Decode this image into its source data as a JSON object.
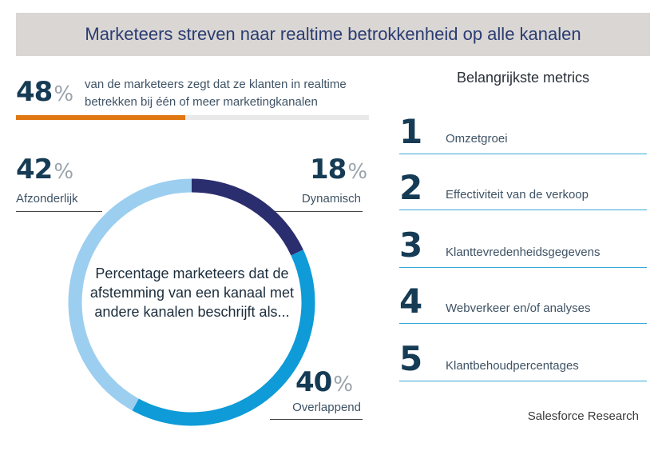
{
  "banner": {
    "title": "Marketeers streven naar realtime betrokkenheid op alle kanalen"
  },
  "headline": {
    "value": "48",
    "pct": "%",
    "text": "van de marketeers zegt dat ze klanten in realtime betrekken bij één of meer marketingkanalen",
    "bar_fraction": 0.48,
    "bar_color": "#e07712"
  },
  "chart_data": {
    "type": "pie",
    "subtype": "donut",
    "center_label": "Percentage marketeers dat de afstemming van een kanaal met andere kanalen beschrijft als...",
    "categories": [
      "Dynamisch",
      "Overlappend",
      "Afzonderlijk"
    ],
    "values": [
      18,
      40,
      42
    ],
    "value_labels": [
      "18",
      "40",
      "42"
    ],
    "pct_symbol": "%",
    "colors": [
      "#2a2d6e",
      "#0e9bd7",
      "#9ccef0"
    ]
  },
  "metrics": {
    "title": "Belangrijkste metrics",
    "items": [
      {
        "num": "1",
        "label": "Omzetgroei"
      },
      {
        "num": "2",
        "label": "Effectiviteit van de verkoop"
      },
      {
        "num": "3",
        "label": "Klanttevredenheidsgegevens"
      },
      {
        "num": "4",
        "label": "Webverkeer en/of analyses"
      },
      {
        "num": "5",
        "label": "Klantbehoudpercentages"
      }
    ]
  },
  "source": "Salesforce Research"
}
